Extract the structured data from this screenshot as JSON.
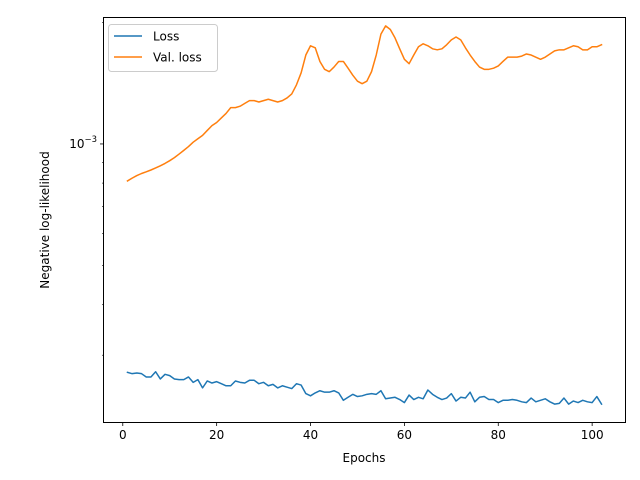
{
  "chart_data": {
    "type": "line",
    "xlabel": "Epochs",
    "ylabel": "Negative log-likelihood",
    "xlim": [
      -4,
      107
    ],
    "ylim": [
      0.000205,
      0.00205
    ],
    "yscale": "log",
    "x_ticks": [
      0,
      20,
      40,
      60,
      80,
      100
    ],
    "x_tick_labels": [
      "0",
      "20",
      "40",
      "60",
      "80",
      "100"
    ],
    "y_major_ticks": [
      0.001
    ],
    "y_tick_labels": [
      "10−3"
    ],
    "y_minor_ticks": [
      0.0003,
      0.0004,
      0.0005,
      0.0006,
      0.0007,
      0.0008,
      0.0009,
      0.002
    ],
    "grid": false,
    "legend_position": "top-left",
    "series": [
      {
        "name": "Loss",
        "color": "#1f77b4",
        "x": [
          1,
          2,
          3,
          4,
          5,
          6,
          7,
          8,
          9,
          10,
          11,
          12,
          13,
          14,
          15,
          16,
          17,
          18,
          19,
          20,
          21,
          22,
          23,
          24,
          25,
          26,
          27,
          28,
          29,
          30,
          31,
          32,
          33,
          34,
          35,
          36,
          37,
          38,
          39,
          40,
          41,
          42,
          43,
          44,
          45,
          46,
          47,
          48,
          49,
          50,
          51,
          52,
          53,
          54,
          55,
          56,
          57,
          58,
          59,
          60,
          61,
          62,
          63,
          64,
          65,
          66,
          67,
          68,
          69,
          70,
          71,
          72,
          73,
          74,
          75,
          76,
          77,
          78,
          79,
          80,
          81,
          82,
          83,
          84,
          85,
          86,
          87,
          88,
          89,
          90,
          91,
          92,
          93,
          94,
          95,
          96,
          97,
          98,
          99,
          100,
          101,
          102
        ],
        "values": [
          0.000272,
          0.00027,
          0.000271,
          0.00027,
          0.000265,
          0.000265,
          0.000273,
          0.000262,
          0.000269,
          0.000267,
          0.000262,
          0.000261,
          0.000261,
          0.000265,
          0.000257,
          0.000261,
          0.000249,
          0.000259,
          0.000256,
          0.000258,
          0.000255,
          0.000252,
          0.000252,
          0.000259,
          0.000257,
          0.000256,
          0.00026,
          0.00026,
          0.000255,
          0.000257,
          0.000252,
          0.000254,
          0.000249,
          0.000252,
          0.00025,
          0.000248,
          0.000255,
          0.000253,
          0.000241,
          0.000238,
          0.000242,
          0.000245,
          0.000243,
          0.000243,
          0.000245,
          0.000242,
          0.000232,
          0.000236,
          0.00024,
          0.000237,
          0.000238,
          0.00024,
          0.000241,
          0.00024,
          0.000245,
          0.000234,
          0.000235,
          0.000236,
          0.000233,
          0.000229,
          0.000239,
          0.000233,
          0.000236,
          0.000234,
          0.000246,
          0.00024,
          0.000236,
          0.000233,
          0.000235,
          0.000241,
          0.000231,
          0.000236,
          0.000235,
          0.000243,
          0.00023,
          0.000236,
          0.000237,
          0.000233,
          0.000233,
          0.000229,
          0.000232,
          0.000232,
          0.000233,
          0.000232,
          0.00023,
          0.000229,
          0.000235,
          0.00023,
          0.000232,
          0.000234,
          0.00023,
          0.000227,
          0.000228,
          0.000235,
          0.000227,
          0.000231,
          0.000229,
          0.000232,
          0.00023,
          0.000229,
          0.000237,
          0.000227
        ]
      },
      {
        "name": "Val. loss",
        "color": "#ff7f0e",
        "x": [
          1,
          2,
          3,
          4,
          5,
          6,
          7,
          8,
          9,
          10,
          11,
          12,
          13,
          14,
          15,
          16,
          17,
          18,
          19,
          20,
          21,
          22,
          23,
          24,
          25,
          26,
          27,
          28,
          29,
          30,
          31,
          32,
          33,
          34,
          35,
          36,
          37,
          38,
          39,
          40,
          41,
          42,
          43,
          44,
          45,
          46,
          47,
          48,
          49,
          50,
          51,
          52,
          53,
          54,
          55,
          56,
          57,
          58,
          59,
          60,
          61,
          62,
          63,
          64,
          65,
          66,
          67,
          68,
          69,
          70,
          71,
          72,
          73,
          74,
          75,
          76,
          77,
          78,
          79,
          80,
          81,
          82,
          83,
          84,
          85,
          86,
          87,
          88,
          89,
          90,
          91,
          92,
          93,
          94,
          95,
          96,
          97,
          98,
          99,
          100,
          101,
          102
        ],
        "values": [
          0.00081,
          0.000823,
          0.000835,
          0.000845,
          0.000853,
          0.000862,
          0.000872,
          0.000883,
          0.000895,
          0.000909,
          0.000925,
          0.000944,
          0.000964,
          0.000985,
          0.00101,
          0.00103,
          0.00105,
          0.00108,
          0.00111,
          0.00113,
          0.00116,
          0.00119,
          0.00123,
          0.00123,
          0.00124,
          0.00126,
          0.00128,
          0.00128,
          0.00127,
          0.00128,
          0.00129,
          0.00128,
          0.00127,
          0.00128,
          0.0013,
          0.00133,
          0.0014,
          0.0015,
          0.00166,
          0.00175,
          0.00173,
          0.0016,
          0.00153,
          0.00151,
          0.00155,
          0.0016,
          0.0016,
          0.00154,
          0.00148,
          0.00143,
          0.00141,
          0.00143,
          0.00151,
          0.00166,
          0.00187,
          0.00196,
          0.00192,
          0.00183,
          0.00172,
          0.00162,
          0.00158,
          0.00166,
          0.00174,
          0.00177,
          0.00175,
          0.00172,
          0.00171,
          0.00172,
          0.00176,
          0.00181,
          0.00184,
          0.00181,
          0.00173,
          0.00166,
          0.0016,
          0.00155,
          0.00153,
          0.00153,
          0.00154,
          0.00156,
          0.0016,
          0.00164,
          0.00164,
          0.00164,
          0.00165,
          0.00167,
          0.00166,
          0.00164,
          0.00162,
          0.00164,
          0.00167,
          0.0017,
          0.00171,
          0.00171,
          0.00173,
          0.00175,
          0.00174,
          0.00171,
          0.00171,
          0.00174,
          0.00174,
          0.00176
        ]
      }
    ]
  }
}
